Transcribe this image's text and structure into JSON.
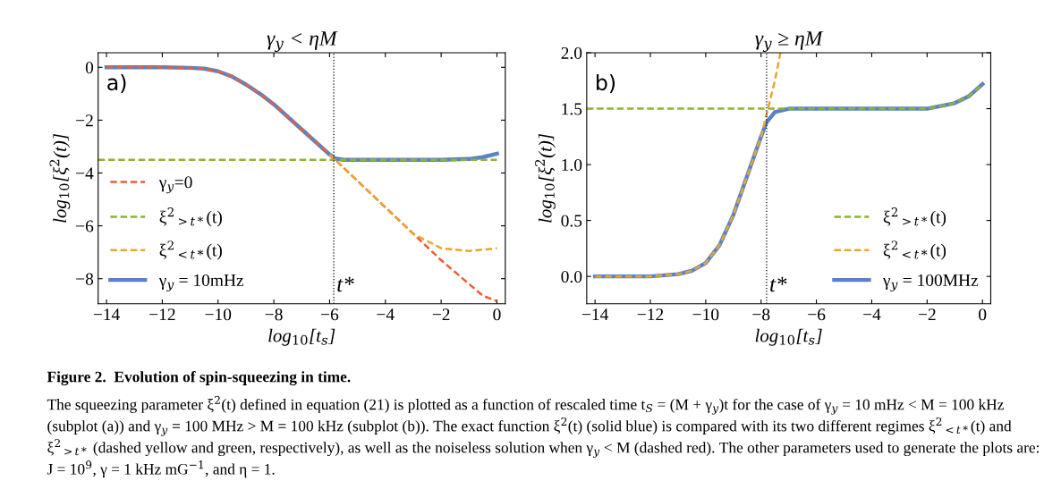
{
  "chart_data": [
    {
      "type": "line",
      "title": "γ$_{y}$ < ηM",
      "xlabel": "log$_{10}$[t$_{s}$]",
      "ylabel": "log$_{10}$[ξ$^{2}$(t)]",
      "xlim": [
        -14.3,
        0.3
      ],
      "ylim": [
        -8.95,
        0.55
      ],
      "xticks": [
        -14,
        -12,
        -10,
        -8,
        -6,
        -4,
        -2,
        0
      ],
      "yticks": [
        -8,
        -6,
        -4,
        -2,
        0
      ],
      "grid": false,
      "legend": "bottom left",
      "marker": "none",
      "ref_lines": [
        {
          "axis": "x",
          "value": -5.85,
          "label": "t*",
          "color": "#000000",
          "line_style": "dotted"
        }
      ],
      "annotations": [
        "a)",
        "Figure 2.  Evolution of spin-squeezing in time.",
        "The squeezing parameter ξ$^{2}$(t) defined in equation (21) is plotted as a function of rescaled time t$_{S}$ = (M + γ$_{y}$)t for the case of γ$_{y}$ = 10 mHz < M = 100 kHz (subplot (a)) and γ$_{y}$ = 100 MHz > M = 100 kHz (subplot (b)). The exact function ξ$^{2}$(t) (solid blue) is compared with its two different regimes ξ$^{2}$$_{<t*}$(t) and ξ$^{2}$$_{>t*}$ (dashed yellow and green, respectively), as well as the noiseless solution when γ$_{y}$ < M (dashed red). The other parameters used to generate the plots are: J = 10$^{9}$, γ = 1 kHz mG$^{−1}$, and η = 1."
      ],
      "series": [
        {
          "name": "γ$_{y}$ = 10mHz",
          "color": "#5b82c4",
          "line_style": "solid",
          "x": [
            -14,
            -12,
            -11,
            -10.5,
            -10,
            -9.5,
            -9,
            -8.5,
            -8,
            -7,
            -6,
            -5.8,
            -5.5,
            -4,
            -2,
            -1,
            -0.5,
            0
          ],
          "values": [
            0,
            0,
            -0.02,
            -0.05,
            -0.15,
            -0.35,
            -0.65,
            -1.0,
            -1.4,
            -2.35,
            -3.3,
            -3.45,
            -3.5,
            -3.5,
            -3.5,
            -3.47,
            -3.4,
            -3.27
          ]
        },
        {
          "name": "γ$_{y}$=0",
          "color": "#e8603a",
          "line_style": "dashed",
          "x": [
            -14,
            -12,
            -11,
            -10.5,
            -10,
            -9.5,
            -9,
            -8.5,
            -8,
            -7,
            -6,
            -5,
            -4,
            -3,
            -2,
            -1,
            -0.5,
            0
          ],
          "values": [
            0,
            0,
            -0.02,
            -0.05,
            -0.15,
            -0.35,
            -0.65,
            -1.0,
            -1.4,
            -2.35,
            -3.3,
            -4.3,
            -5.3,
            -6.3,
            -7.3,
            -8.2,
            -8.65,
            -8.85
          ]
        },
        {
          "name": "ξ$^{2}$$_{>t*}$(t)",
          "color": "#8db33a",
          "line_style": "dashed",
          "x": [
            -14.3,
            0
          ],
          "values": [
            -3.5,
            -3.5
          ]
        },
        {
          "name": "ξ$^{2}$$_{<t*}$(t)",
          "color": "#e8a530",
          "line_style": "dashed",
          "x": [
            -6,
            -5,
            -4,
            -3,
            -2,
            -1,
            0
          ],
          "values": [
            -3.3,
            -4.3,
            -5.3,
            -6.3,
            -6.85,
            -6.95,
            -6.85
          ]
        }
      ]
    },
    {
      "type": "line",
      "title": "γ$_{y}$ ≥ ηM",
      "xlabel": "log$_{10}$[t$_{s}$]",
      "ylabel": "log$_{10}$[ξ$^{2}$(t)]",
      "xlim": [
        -14.3,
        0.3
      ],
      "ylim": [
        -0.245,
        2.0
      ],
      "xticks": [
        -14,
        -12,
        -10,
        -8,
        -6,
        -4,
        -2,
        0
      ],
      "yticks": [
        {
          "value": 0,
          "label": "0.0"
        },
        0.5,
        {
          "value": 1,
          "label": "1.0"
        },
        1.5,
        {
          "value": 2,
          "label": "2.0"
        }
      ],
      "grid": false,
      "legend": "bottom right",
      "marker": "none",
      "ref_lines": [
        {
          "axis": "x",
          "value": -7.8,
          "label": "t*",
          "color": "#000000",
          "line_style": "dotted"
        }
      ],
      "annotations": [
        "b)"
      ],
      "series": [
        {
          "name": "γ$_{y}$ = 100MHz",
          "color": "#5b82c4",
          "line_style": "solid",
          "x": [
            -14,
            -12,
            -11,
            -10.5,
            -10,
            -9.5,
            -9,
            -8.5,
            -8,
            -7.8,
            -7.5,
            -7,
            -4,
            -2,
            -1,
            -0.5,
            0
          ],
          "values": [
            0,
            0,
            0.02,
            0.05,
            0.12,
            0.28,
            0.55,
            0.9,
            1.25,
            1.38,
            1.47,
            1.5,
            1.5,
            1.5,
            1.55,
            1.61,
            1.72
          ]
        },
        {
          "name": "ξ$^{2}$$_{>t*}$(t)",
          "color": "#8db33a",
          "line_style": "dashed",
          "x": [
            -14.3,
            -7,
            -4,
            -2,
            -1,
            -0.5,
            0
          ],
          "values": [
            1.5,
            1.5,
            1.5,
            1.5,
            1.55,
            1.61,
            1.72
          ]
        },
        {
          "name": "ξ$^{2}$$_{<t*}$(t)",
          "color": "#e8a530",
          "line_style": "dashed",
          "x": [
            -14,
            -12,
            -11,
            -10.5,
            -10,
            -9.5,
            -9,
            -8.5,
            -8,
            -7.8,
            -7.5,
            -7.3
          ],
          "values": [
            0,
            0,
            0.02,
            0.05,
            0.12,
            0.28,
            0.55,
            0.9,
            1.25,
            1.45,
            1.75,
            2.0
          ]
        }
      ]
    }
  ]
}
